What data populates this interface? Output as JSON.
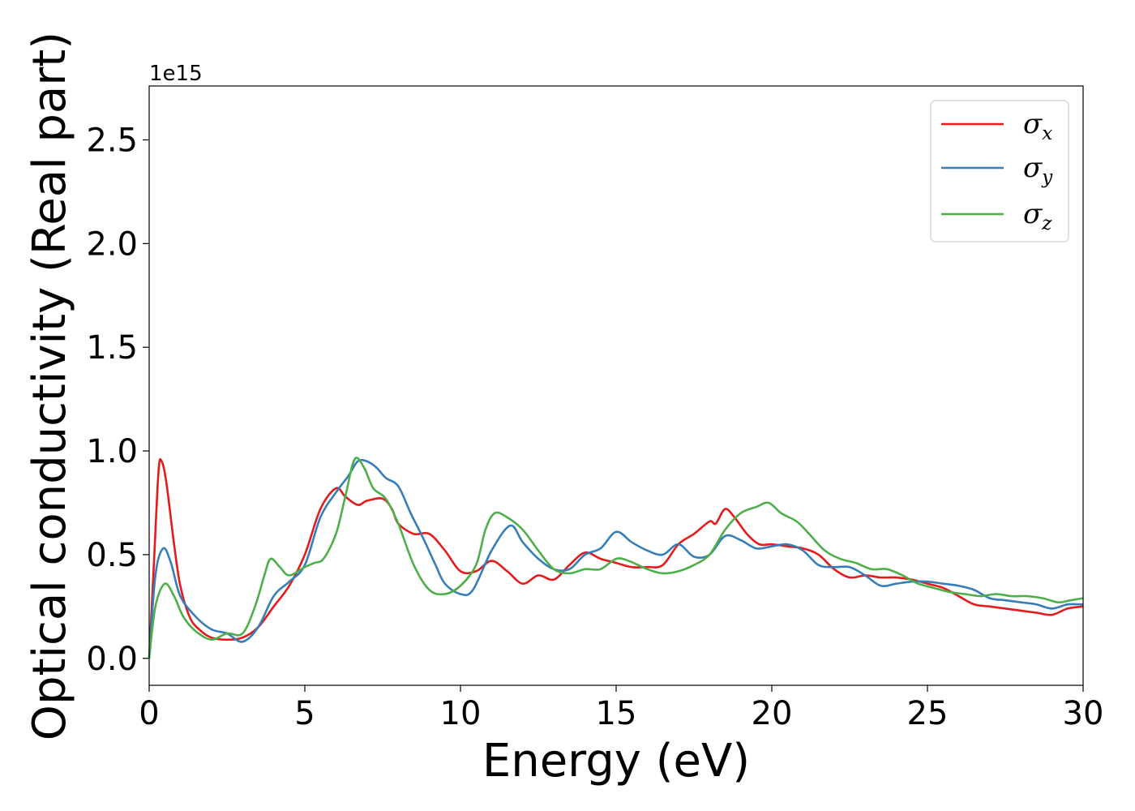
{
  "chart_data": {
    "type": "line",
    "xlabel": "Energy (eV)",
    "ylabel": "Optical conductivity (Real part)",
    "y_offset_label": "1e15",
    "xlim": [
      0,
      30
    ],
    "ylim": [
      -0.13,
      2.76
    ],
    "xticks": [
      0,
      5,
      10,
      15,
      20,
      25,
      30
    ],
    "xtick_labels": [
      "0",
      "5",
      "10",
      "15",
      "20",
      "25",
      "30"
    ],
    "yticks": [
      0.0,
      0.5,
      1.0,
      1.5,
      2.0,
      2.5
    ],
    "ytick_labels": [
      "0.0",
      "0.5",
      "1.0",
      "1.5",
      "2.0",
      "2.5"
    ],
    "grid": false,
    "legend_position": "top-right",
    "series": [
      {
        "name": "σ",
        "subscript": "x",
        "color": "#e41a1c",
        "points": [
          [
            0,
            0.0
          ],
          [
            0.15,
            0.45
          ],
          [
            0.3,
            0.9
          ],
          [
            0.4,
            0.95
          ],
          [
            0.55,
            0.85
          ],
          [
            0.8,
            0.55
          ],
          [
            1.0,
            0.35
          ],
          [
            1.3,
            0.2
          ],
          [
            1.6,
            0.14
          ],
          [
            2.0,
            0.1
          ],
          [
            2.5,
            0.09
          ],
          [
            3.0,
            0.1
          ],
          [
            3.5,
            0.15
          ],
          [
            4.0,
            0.25
          ],
          [
            4.5,
            0.35
          ],
          [
            5.0,
            0.5
          ],
          [
            5.5,
            0.72
          ],
          [
            6.0,
            0.82
          ],
          [
            6.3,
            0.78
          ],
          [
            6.7,
            0.74
          ],
          [
            7.0,
            0.76
          ],
          [
            7.5,
            0.77
          ],
          [
            7.8,
            0.72
          ],
          [
            8.0,
            0.65
          ],
          [
            8.5,
            0.6
          ],
          [
            9.0,
            0.6
          ],
          [
            9.5,
            0.52
          ],
          [
            10.0,
            0.42
          ],
          [
            10.5,
            0.42
          ],
          [
            11.0,
            0.47
          ],
          [
            11.5,
            0.42
          ],
          [
            12.0,
            0.36
          ],
          [
            12.5,
            0.4
          ],
          [
            13.0,
            0.38
          ],
          [
            13.5,
            0.45
          ],
          [
            14.0,
            0.51
          ],
          [
            14.5,
            0.48
          ],
          [
            15.0,
            0.46
          ],
          [
            15.5,
            0.44
          ],
          [
            16.0,
            0.44
          ],
          [
            16.5,
            0.45
          ],
          [
            17.0,
            0.55
          ],
          [
            17.5,
            0.6
          ],
          [
            18.0,
            0.66
          ],
          [
            18.2,
            0.65
          ],
          [
            18.5,
            0.72
          ],
          [
            18.8,
            0.68
          ],
          [
            19.2,
            0.6
          ],
          [
            19.6,
            0.55
          ],
          [
            20.0,
            0.55
          ],
          [
            20.5,
            0.54
          ],
          [
            21.0,
            0.53
          ],
          [
            21.5,
            0.5
          ],
          [
            22.0,
            0.43
          ],
          [
            22.5,
            0.39
          ],
          [
            23.0,
            0.4
          ],
          [
            23.5,
            0.39
          ],
          [
            24.0,
            0.39
          ],
          [
            24.5,
            0.38
          ],
          [
            25.0,
            0.36
          ],
          [
            25.5,
            0.34
          ],
          [
            26.0,
            0.3
          ],
          [
            26.5,
            0.26
          ],
          [
            27.0,
            0.25
          ],
          [
            27.5,
            0.24
          ],
          [
            28.0,
            0.23
          ],
          [
            28.5,
            0.22
          ],
          [
            29.0,
            0.21
          ],
          [
            29.5,
            0.24
          ],
          [
            30.0,
            0.25
          ]
        ]
      },
      {
        "name": "σ",
        "subscript": "y",
        "color": "#377eb8",
        "points": [
          [
            0,
            0.0
          ],
          [
            0.2,
            0.4
          ],
          [
            0.45,
            0.53
          ],
          [
            0.7,
            0.46
          ],
          [
            1.0,
            0.3
          ],
          [
            1.5,
            0.2
          ],
          [
            2.0,
            0.14
          ],
          [
            2.5,
            0.12
          ],
          [
            3.0,
            0.08
          ],
          [
            3.5,
            0.15
          ],
          [
            4.0,
            0.3
          ],
          [
            4.5,
            0.37
          ],
          [
            5.0,
            0.45
          ],
          [
            5.5,
            0.68
          ],
          [
            6.0,
            0.8
          ],
          [
            6.4,
            0.88
          ],
          [
            6.7,
            0.95
          ],
          [
            7.0,
            0.95
          ],
          [
            7.3,
            0.92
          ],
          [
            7.6,
            0.87
          ],
          [
            8.0,
            0.83
          ],
          [
            8.4,
            0.7
          ],
          [
            8.8,
            0.58
          ],
          [
            9.2,
            0.45
          ],
          [
            9.5,
            0.36
          ],
          [
            10.0,
            0.31
          ],
          [
            10.4,
            0.33
          ],
          [
            11.0,
            0.52
          ],
          [
            11.6,
            0.64
          ],
          [
            12.0,
            0.56
          ],
          [
            12.5,
            0.48
          ],
          [
            13.0,
            0.43
          ],
          [
            13.5,
            0.43
          ],
          [
            14.0,
            0.5
          ],
          [
            14.5,
            0.53
          ],
          [
            15.0,
            0.61
          ],
          [
            15.5,
            0.56
          ],
          [
            16.0,
            0.52
          ],
          [
            16.5,
            0.5
          ],
          [
            17.0,
            0.55
          ],
          [
            17.5,
            0.49
          ],
          [
            18.0,
            0.5
          ],
          [
            18.5,
            0.59
          ],
          [
            19.0,
            0.57
          ],
          [
            19.5,
            0.53
          ],
          [
            20.0,
            0.54
          ],
          [
            20.5,
            0.55
          ],
          [
            21.0,
            0.52
          ],
          [
            21.5,
            0.45
          ],
          [
            22.0,
            0.44
          ],
          [
            22.5,
            0.44
          ],
          [
            23.0,
            0.4
          ],
          [
            23.5,
            0.35
          ],
          [
            24.0,
            0.36
          ],
          [
            24.5,
            0.37
          ],
          [
            25.0,
            0.37
          ],
          [
            25.5,
            0.36
          ],
          [
            26.0,
            0.35
          ],
          [
            26.5,
            0.33
          ],
          [
            27.0,
            0.29
          ],
          [
            27.5,
            0.28
          ],
          [
            28.0,
            0.27
          ],
          [
            28.5,
            0.26
          ],
          [
            29.0,
            0.24
          ],
          [
            29.5,
            0.26
          ],
          [
            30.0,
            0.26
          ]
        ]
      },
      {
        "name": "σ",
        "subscript": "z",
        "color": "#4daf4a",
        "points": [
          [
            0,
            0.0
          ],
          [
            0.2,
            0.25
          ],
          [
            0.5,
            0.36
          ],
          [
            0.8,
            0.3
          ],
          [
            1.1,
            0.2
          ],
          [
            1.5,
            0.13
          ],
          [
            2.0,
            0.09
          ],
          [
            2.5,
            0.12
          ],
          [
            3.0,
            0.12
          ],
          [
            3.4,
            0.25
          ],
          [
            3.7,
            0.4
          ],
          [
            3.9,
            0.48
          ],
          [
            4.2,
            0.44
          ],
          [
            4.5,
            0.4
          ],
          [
            5.0,
            0.44
          ],
          [
            5.3,
            0.46
          ],
          [
            5.6,
            0.48
          ],
          [
            6.0,
            0.6
          ],
          [
            6.3,
            0.78
          ],
          [
            6.6,
            0.96
          ],
          [
            6.9,
            0.92
          ],
          [
            7.2,
            0.82
          ],
          [
            7.6,
            0.77
          ],
          [
            8.0,
            0.65
          ],
          [
            8.5,
            0.45
          ],
          [
            9.0,
            0.33
          ],
          [
            9.5,
            0.31
          ],
          [
            10.0,
            0.35
          ],
          [
            10.5,
            0.45
          ],
          [
            10.8,
            0.62
          ],
          [
            11.1,
            0.7
          ],
          [
            11.5,
            0.68
          ],
          [
            12.0,
            0.62
          ],
          [
            12.5,
            0.52
          ],
          [
            13.0,
            0.43
          ],
          [
            13.5,
            0.41
          ],
          [
            14.0,
            0.43
          ],
          [
            14.5,
            0.43
          ],
          [
            15.0,
            0.48
          ],
          [
            15.4,
            0.47
          ],
          [
            16.0,
            0.43
          ],
          [
            16.5,
            0.41
          ],
          [
            17.0,
            0.42
          ],
          [
            17.5,
            0.45
          ],
          [
            18.0,
            0.5
          ],
          [
            18.5,
            0.62
          ],
          [
            19.0,
            0.7
          ],
          [
            19.5,
            0.73
          ],
          [
            19.9,
            0.75
          ],
          [
            20.3,
            0.7
          ],
          [
            20.8,
            0.66
          ],
          [
            21.2,
            0.6
          ],
          [
            21.7,
            0.52
          ],
          [
            22.2,
            0.48
          ],
          [
            22.7,
            0.46
          ],
          [
            23.2,
            0.43
          ],
          [
            23.7,
            0.43
          ],
          [
            24.2,
            0.4
          ],
          [
            24.7,
            0.36
          ],
          [
            25.2,
            0.34
          ],
          [
            25.7,
            0.32
          ],
          [
            26.2,
            0.31
          ],
          [
            26.7,
            0.3
          ],
          [
            27.2,
            0.31
          ],
          [
            27.7,
            0.3
          ],
          [
            28.2,
            0.3
          ],
          [
            28.7,
            0.29
          ],
          [
            29.2,
            0.27
          ],
          [
            29.6,
            0.28
          ],
          [
            30.0,
            0.29
          ]
        ]
      }
    ]
  }
}
